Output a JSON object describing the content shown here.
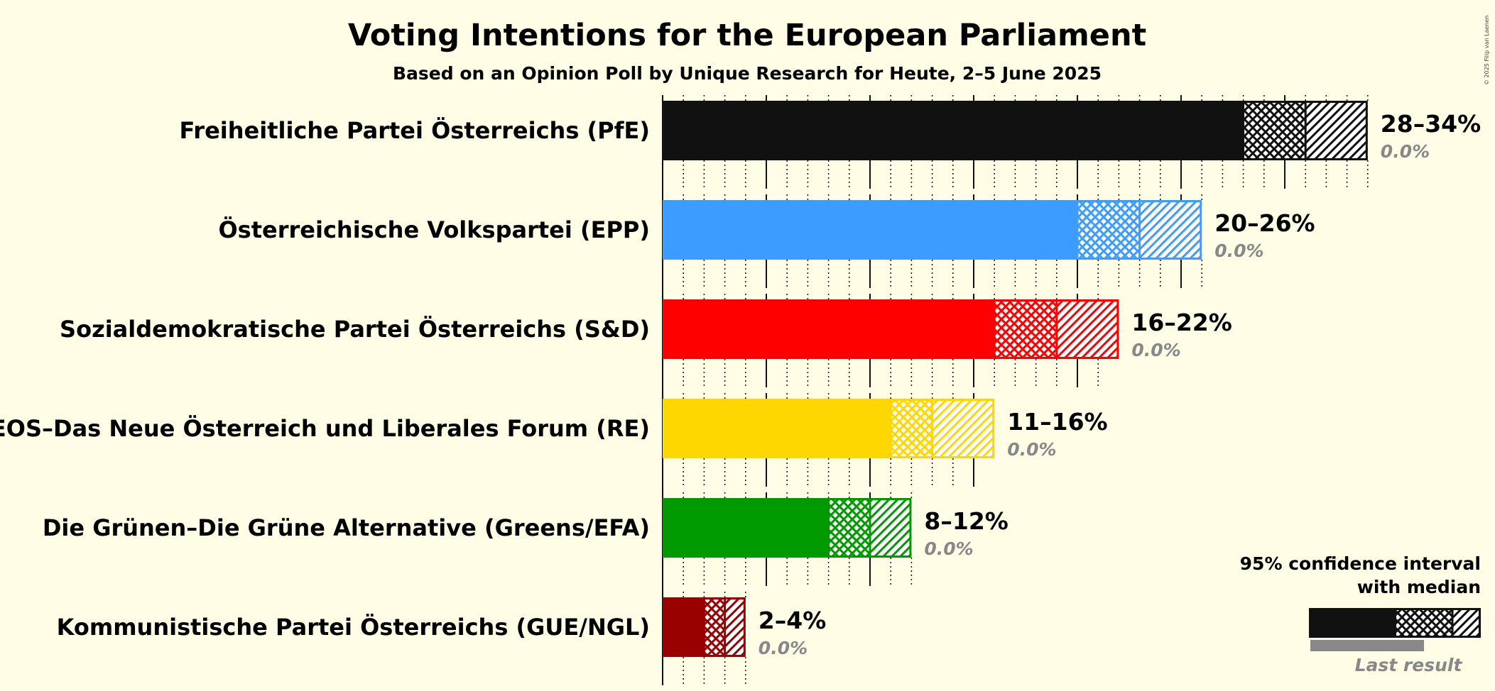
{
  "chart_data": {
    "type": "bar",
    "title": "Voting Intentions for the European Parliament",
    "subtitle": "Based on an Opinion Poll by Unique Research for Heute, 2–5 June 2025",
    "copyright": "© 2025 Filip van Laenen",
    "xlim": [
      0,
      35
    ],
    "grid": "dotted minor every 1%, solid major every 5%",
    "legend_position": "bottom-right",
    "legend": {
      "line1": "95% confidence interval",
      "line2": "with median",
      "last_result": "Last result"
    },
    "parties": [
      {
        "name": "Freiheitliche Partei Österreichs (PfE)",
        "color": "#111111",
        "low": 28,
        "median": 31,
        "high": 34,
        "range_label": "28–34%",
        "last_result": "0.0%",
        "ticks_end": 34
      },
      {
        "name": "Österreichische Volkspartei (EPP)",
        "color": "#3c9cff",
        "low": 20,
        "median": 23,
        "high": 26,
        "range_label": "20–26%",
        "last_result": "0.0%",
        "ticks_end": 26
      },
      {
        "name": "Sozialdemokratische Partei Österreichs (S&D)",
        "color": "#ff0000",
        "low": 16,
        "median": 19,
        "high": 22,
        "range_label": "16–22%",
        "last_result": "0.0%",
        "ticks_end": 21
      },
      {
        "name": "NEOS–Das Neue Österreich und Liberales Forum (RE)",
        "color": "#ffd700",
        "low": 11,
        "median": 13,
        "high": 16,
        "range_label": "11–16%",
        "last_result": "0.0%",
        "ticks_end": 15
      },
      {
        "name": "Die Grünen–Die Grüne Alternative (Greens/EFA)",
        "color": "#009900",
        "low": 8,
        "median": 10,
        "high": 12,
        "range_label": "8–12%",
        "last_result": "0.0%",
        "ticks_end": 12
      },
      {
        "name": "Kommunistische Partei Österreichs (GUE/NGL)",
        "color": "#990000",
        "low": 2,
        "median": 3,
        "high": 4,
        "range_label": "2–4%",
        "last_result": "0.0%",
        "ticks_end": 4
      }
    ]
  }
}
